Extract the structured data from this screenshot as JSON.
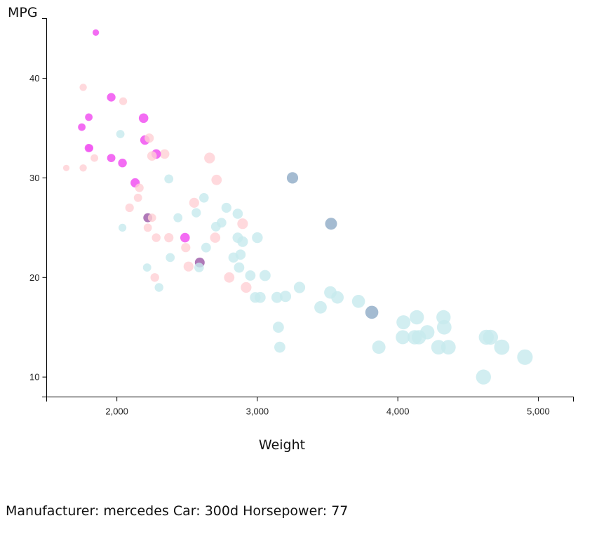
{
  "chart_data": {
    "type": "scatter",
    "xlabel": "Weight",
    "ylabel": "MPG",
    "xlim": [
      1500,
      5250
    ],
    "ylim": [
      8,
      46
    ],
    "x_ticks": [
      2000,
      3000,
      4000,
      5000
    ],
    "x_tick_labels": [
      "2,000",
      "3,000",
      "4,000",
      "5,000"
    ],
    "y_ticks": [
      10,
      20,
      30,
      40
    ],
    "y_tick_labels": [
      "10",
      "20",
      "30",
      "40"
    ],
    "grid": false,
    "size_encoding": "horsepower",
    "colors": {
      "light_blue": "#c7eaee",
      "steel_blue": "#8daac6",
      "light_pink": "#ffcfd4",
      "magenta": "#f25cf2",
      "purple": "#9b57a6"
    },
    "points": [
      {
        "weight": 1850,
        "mpg": 44.6,
        "hp": 52,
        "color": "magenta"
      },
      {
        "weight": 1760,
        "mpg": 39.1,
        "hp": 58,
        "color": "light_pink"
      },
      {
        "weight": 1960,
        "mpg": 38.1,
        "hp": 67,
        "color": "magenta"
      },
      {
        "weight": 2045,
        "mpg": 37.7,
        "hp": 62,
        "color": "light_pink"
      },
      {
        "weight": 1800,
        "mpg": 36.1,
        "hp": 60,
        "color": "magenta"
      },
      {
        "weight": 2190,
        "mpg": 36.0,
        "hp": 75,
        "color": "magenta"
      },
      {
        "weight": 1750,
        "mpg": 35.1,
        "hp": 60,
        "color": "magenta"
      },
      {
        "weight": 2025,
        "mpg": 34.4,
        "hp": 65,
        "color": "light_blue"
      },
      {
        "weight": 2230,
        "mpg": 34.0,
        "hp": 72,
        "color": "light_pink"
      },
      {
        "weight": 2200,
        "mpg": 33.8,
        "hp": 75,
        "color": "magenta"
      },
      {
        "weight": 1800,
        "mpg": 33.0,
        "hp": 65,
        "color": "magenta"
      },
      {
        "weight": 1805,
        "mpg": 33.0,
        "hp": 60,
        "color": "magenta"
      },
      {
        "weight": 2340,
        "mpg": 32.4,
        "hp": 75,
        "color": "light_pink"
      },
      {
        "weight": 2280,
        "mpg": 32.4,
        "hp": 75,
        "color": "magenta"
      },
      {
        "weight": 2250,
        "mpg": 32.2,
        "hp": 75,
        "color": "light_pink"
      },
      {
        "weight": 1840,
        "mpg": 32.0,
        "hp": 60,
        "color": "light_pink"
      },
      {
        "weight": 1960,
        "mpg": 32.0,
        "hp": 65,
        "color": "magenta"
      },
      {
        "weight": 2660,
        "mpg": 32.0,
        "hp": 85,
        "color": "light_pink"
      },
      {
        "weight": 2040,
        "mpg": 31.5,
        "hp": 68,
        "color": "magenta"
      },
      {
        "weight": 1640,
        "mpg": 31.0,
        "hp": 52,
        "color": "light_pink"
      },
      {
        "weight": 1760,
        "mpg": 31.0,
        "hp": 58,
        "color": "light_pink"
      },
      {
        "weight": 3250,
        "mpg": 30.0,
        "hp": 90,
        "color": "steel_blue"
      },
      {
        "weight": 2370,
        "mpg": 29.9,
        "hp": 70,
        "color": "light_blue"
      },
      {
        "weight": 2710,
        "mpg": 29.8,
        "hp": 82,
        "color": "light_pink"
      },
      {
        "weight": 2130,
        "mpg": 29.5,
        "hp": 72,
        "color": "magenta"
      },
      {
        "weight": 2160,
        "mpg": 29.0,
        "hp": 67,
        "color": "light_pink"
      },
      {
        "weight": 2620,
        "mpg": 28.0,
        "hp": 75,
        "color": "light_blue"
      },
      {
        "weight": 2150,
        "mpg": 28.0,
        "hp": 65,
        "color": "light_pink"
      },
      {
        "weight": 2550,
        "mpg": 27.5,
        "hp": 78,
        "color": "light_pink"
      },
      {
        "weight": 2090,
        "mpg": 27.0,
        "hp": 67,
        "color": "light_pink"
      },
      {
        "weight": 2780,
        "mpg": 27.0,
        "hp": 78,
        "color": "light_blue"
      },
      {
        "weight": 2565,
        "mpg": 26.5,
        "hp": 72,
        "color": "light_blue"
      },
      {
        "weight": 2860,
        "mpg": 26.4,
        "hp": 80,
        "color": "light_blue"
      },
      {
        "weight": 2220,
        "mpg": 26.0,
        "hp": 70,
        "color": "purple"
      },
      {
        "weight": 2250,
        "mpg": 26.0,
        "hp": 65,
        "color": "light_pink"
      },
      {
        "weight": 2435,
        "mpg": 26.0,
        "hp": 70,
        "color": "light_blue"
      },
      {
        "weight": 3525,
        "mpg": 25.4,
        "hp": 95,
        "color": "steel_blue"
      },
      {
        "weight": 2745,
        "mpg": 25.5,
        "hp": 76,
        "color": "light_blue"
      },
      {
        "weight": 2895,
        "mpg": 25.4,
        "hp": 84,
        "color": "light_pink"
      },
      {
        "weight": 2040,
        "mpg": 25.0,
        "hp": 62,
        "color": "light_blue"
      },
      {
        "weight": 2220,
        "mpg": 25.0,
        "hp": 65,
        "color": "light_pink"
      },
      {
        "weight": 2705,
        "mpg": 25.1,
        "hp": 76,
        "color": "light_blue"
      },
      {
        "weight": 2280,
        "mpg": 24.0,
        "hp": 68,
        "color": "light_pink"
      },
      {
        "weight": 2370,
        "mpg": 24.0,
        "hp": 72,
        "color": "light_pink"
      },
      {
        "weight": 2485,
        "mpg": 24.0,
        "hp": 75,
        "color": "magenta"
      },
      {
        "weight": 2700,
        "mpg": 24.0,
        "hp": 80,
        "color": "light_pink"
      },
      {
        "weight": 2860,
        "mpg": 24.0,
        "hp": 82,
        "color": "light_blue"
      },
      {
        "weight": 3000,
        "mpg": 24.0,
        "hp": 85,
        "color": "light_blue"
      },
      {
        "weight": 2895,
        "mpg": 23.6,
        "hp": 84,
        "color": "light_blue"
      },
      {
        "weight": 2490,
        "mpg": 23.0,
        "hp": 72,
        "color": "light_pink"
      },
      {
        "weight": 2635,
        "mpg": 23.0,
        "hp": 76,
        "color": "light_blue"
      },
      {
        "weight": 2880,
        "mpg": 22.3,
        "hp": 80,
        "color": "light_blue"
      },
      {
        "weight": 2380,
        "mpg": 22.0,
        "hp": 70,
        "color": "light_blue"
      },
      {
        "weight": 2830,
        "mpg": 22.0,
        "hp": 80,
        "color": "light_blue"
      },
      {
        "weight": 2590,
        "mpg": 21.5,
        "hp": 77,
        "color": "purple"
      },
      {
        "weight": 2585,
        "mpg": 21.0,
        "hp": 75,
        "color": "light_blue"
      },
      {
        "weight": 2510,
        "mpg": 21.1,
        "hp": 78,
        "color": "light_pink"
      },
      {
        "weight": 2870,
        "mpg": 21.0,
        "hp": 82,
        "color": "light_blue"
      },
      {
        "weight": 2215,
        "mpg": 21.0,
        "hp": 65,
        "color": "light_blue"
      },
      {
        "weight": 2950,
        "mpg": 20.2,
        "hp": 82,
        "color": "light_blue"
      },
      {
        "weight": 3055,
        "mpg": 20.2,
        "hp": 88,
        "color": "light_blue"
      },
      {
        "weight": 2800,
        "mpg": 20.0,
        "hp": 82,
        "color": "light_pink"
      },
      {
        "weight": 2270,
        "mpg": 20.0,
        "hp": 68,
        "color": "light_pink"
      },
      {
        "weight": 2920,
        "mpg": 19.0,
        "hp": 84,
        "color": "light_pink"
      },
      {
        "weight": 3300,
        "mpg": 19.0,
        "hp": 90,
        "color": "light_blue"
      },
      {
        "weight": 2300,
        "mpg": 19.0,
        "hp": 68,
        "color": "light_blue"
      },
      {
        "weight": 3520,
        "mpg": 18.5,
        "hp": 100,
        "color": "light_blue"
      },
      {
        "weight": 2985,
        "mpg": 18.0,
        "hp": 84,
        "color": "light_blue"
      },
      {
        "weight": 3020,
        "mpg": 18.0,
        "hp": 86,
        "color": "light_blue"
      },
      {
        "weight": 3140,
        "mpg": 18.0,
        "hp": 88,
        "color": "light_blue"
      },
      {
        "weight": 3200,
        "mpg": 18.1,
        "hp": 90,
        "color": "light_blue"
      },
      {
        "weight": 3570,
        "mpg": 18.0,
        "hp": 100,
        "color": "light_blue"
      },
      {
        "weight": 3720,
        "mpg": 17.6,
        "hp": 105,
        "color": "light_blue"
      },
      {
        "weight": 3450,
        "mpg": 17.0,
        "hp": 100,
        "color": "light_blue"
      },
      {
        "weight": 3815,
        "mpg": 16.5,
        "hp": 105,
        "color": "steel_blue"
      },
      {
        "weight": 4040,
        "mpg": 15.5,
        "hp": 115,
        "color": "light_blue"
      },
      {
        "weight": 4135,
        "mpg": 16.0,
        "hp": 118,
        "color": "light_blue"
      },
      {
        "weight": 4325,
        "mpg": 16.0,
        "hp": 118,
        "color": "light_blue"
      },
      {
        "weight": 4330,
        "mpg": 15.0,
        "hp": 120,
        "color": "light_blue"
      },
      {
        "weight": 3150,
        "mpg": 15.0,
        "hp": 88,
        "color": "light_blue"
      },
      {
        "weight": 4210,
        "mpg": 14.5,
        "hp": 118,
        "color": "light_blue"
      },
      {
        "weight": 4035,
        "mpg": 14.0,
        "hp": 115,
        "color": "light_blue"
      },
      {
        "weight": 4120,
        "mpg": 14.0,
        "hp": 118,
        "color": "light_blue"
      },
      {
        "weight": 4150,
        "mpg": 14.0,
        "hp": 118,
        "color": "light_blue"
      },
      {
        "weight": 4630,
        "mpg": 14.0,
        "hp": 125,
        "color": "light_blue"
      },
      {
        "weight": 4660,
        "mpg": 14.0,
        "hp": 125,
        "color": "light_blue"
      },
      {
        "weight": 3160,
        "mpg": 13.0,
        "hp": 88,
        "color": "light_blue"
      },
      {
        "weight": 3865,
        "mpg": 13.0,
        "hp": 108,
        "color": "light_blue"
      },
      {
        "weight": 4290,
        "mpg": 13.0,
        "hp": 120,
        "color": "light_blue"
      },
      {
        "weight": 4360,
        "mpg": 13.0,
        "hp": 120,
        "color": "light_blue"
      },
      {
        "weight": 4740,
        "mpg": 13.0,
        "hp": 128,
        "color": "light_blue"
      },
      {
        "weight": 4905,
        "mpg": 12.0,
        "hp": 130,
        "color": "light_blue"
      },
      {
        "weight": 4610,
        "mpg": 10.0,
        "hp": 125,
        "color": "light_blue"
      }
    ]
  },
  "info": {
    "manufacturer_label": "Manufacturer:",
    "manufacturer": "mercedes",
    "car_label": "Car:",
    "car": "300d",
    "horsepower_label": "Horsepower:",
    "horsepower": "77"
  }
}
